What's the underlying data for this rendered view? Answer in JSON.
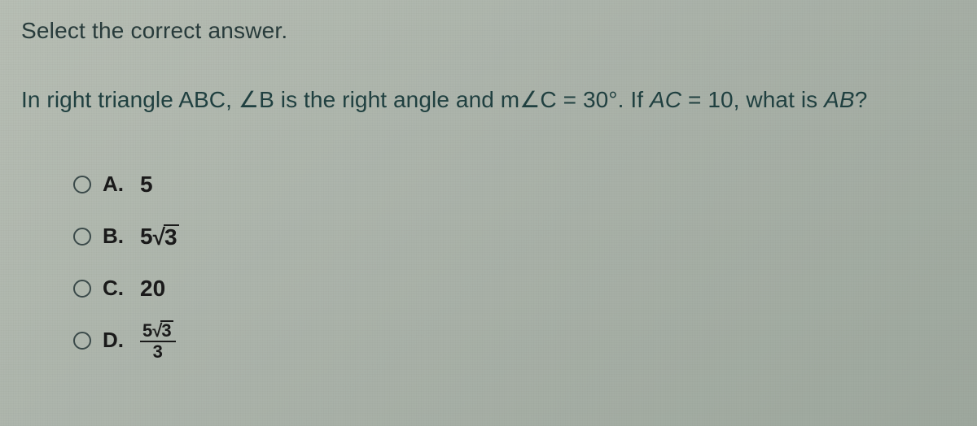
{
  "instruction": "Select the correct answer.",
  "prompt": {
    "part1": "In right triangle ABC, ",
    "angle1": "∠",
    "b": "B",
    "part2": " is the right angle and m",
    "angle2": "∠",
    "c": "C",
    "part3": " = 30°. If ",
    "ac": "AC",
    "part4": " = 10, what is ",
    "ab": "AB",
    "qmark": "?"
  },
  "choices": {
    "a": {
      "letter": "A.",
      "value": "5"
    },
    "b": {
      "letter": "B.",
      "coeff": "5",
      "radicand": "3"
    },
    "c": {
      "letter": "C.",
      "value": "20"
    },
    "d": {
      "letter": "D.",
      "num_coeff": "5",
      "num_radicand": "3",
      "den": "3"
    }
  },
  "style": {
    "text_color": "#204040",
    "choice_color": "#1a1a1a",
    "radio_border": "#3b4a4a"
  }
}
